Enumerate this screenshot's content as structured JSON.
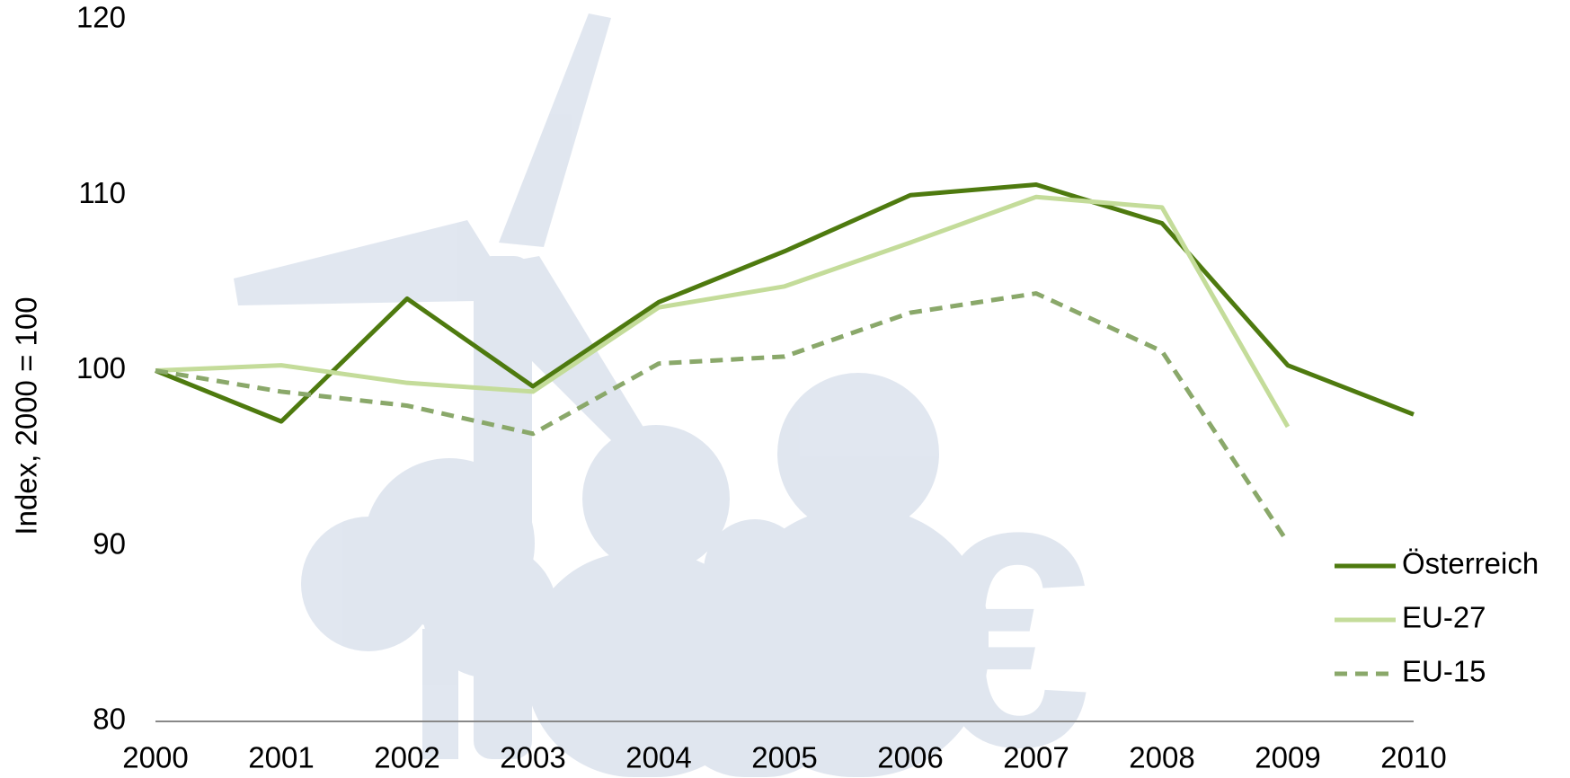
{
  "chart_data": {
    "type": "line",
    "y_label": "Index, 2000 = 100",
    "x": [
      2000,
      2001,
      2002,
      2003,
      2004,
      2005,
      2006,
      2007,
      2008,
      2009,
      2010
    ],
    "xlim": [
      2000,
      2010
    ],
    "xticks": [
      2000,
      2001,
      2002,
      2003,
      2004,
      2005,
      2006,
      2007,
      2008,
      2009,
      2010
    ],
    "ylim": [
      80,
      120
    ],
    "yticks": [
      80,
      90,
      100,
      110,
      120
    ],
    "legend": "right",
    "series": [
      {
        "name": "Österreich",
        "color": "#4e7a0f",
        "dash": "solid",
        "values": [
          100,
          97.1,
          104.1,
          99.1,
          103.9,
          106.8,
          110.0,
          110.6,
          108.4,
          100.3,
          97.5
        ]
      },
      {
        "name": "EU-27",
        "color": "#c4dc9a",
        "dash": "solid",
        "values": [
          100,
          100.3,
          99.3,
          98.8,
          103.6,
          104.8,
          107.3,
          109.9,
          109.3,
          96.8,
          null
        ]
      },
      {
        "name": "EU-15",
        "color": "#8aa86a",
        "dash": "dashed",
        "values": [
          100,
          98.8,
          98.0,
          96.4,
          100.4,
          100.8,
          103.3,
          104.4,
          101.1,
          90.2,
          null
        ]
      }
    ]
  }
}
